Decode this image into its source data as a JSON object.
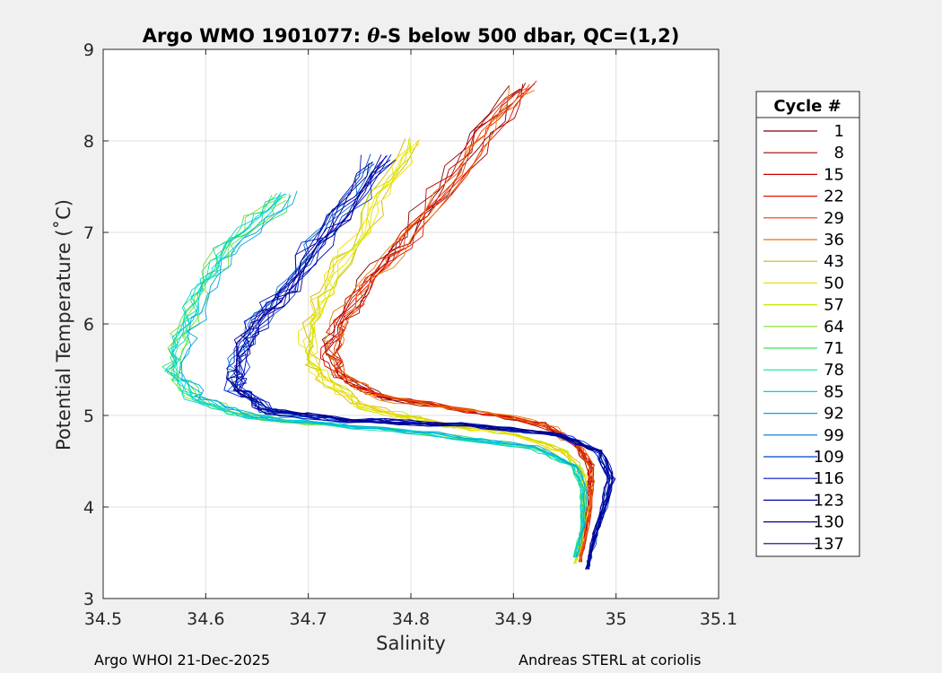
{
  "chart_data": {
    "type": "line",
    "title_prefix": "Argo WMO 1901077: ",
    "title_theta": "θ",
    "title_suffix": "-S below 500 dbar,  QC=(1,2)",
    "xlabel": "Salinity",
    "ylabel": "Potential Temperature (˚C)",
    "xlim": [
      34.5,
      35.1
    ],
    "ylim": [
      3,
      9
    ],
    "x_ticks": [
      34.5,
      34.6,
      34.7,
      34.8,
      34.9,
      35.0,
      35.1
    ],
    "x_tick_labels": [
      "34.5",
      "34.6",
      "34.7",
      "34.8",
      "34.9",
      "35",
      "35.1"
    ],
    "y_ticks": [
      3,
      4,
      5,
      6,
      7,
      8,
      9
    ],
    "y_tick_labels": [
      "3",
      "4",
      "5",
      "6",
      "7",
      "8",
      "9"
    ],
    "grid": true,
    "legend": {
      "title": "Cycle #",
      "position": "right",
      "entries": [
        {
          "label": "1",
          "color": "#800000"
        },
        {
          "label": "8",
          "color": "#a00000"
        },
        {
          "label": "15",
          "color": "#c80000"
        },
        {
          "label": "22",
          "color": "#e80e00"
        },
        {
          "label": "29",
          "color": "#e83c00"
        },
        {
          "label": "36",
          "color": "#e87800"
        },
        {
          "label": "43",
          "color": "#d8b400"
        },
        {
          "label": "50",
          "color": "#f0e000"
        },
        {
          "label": "57",
          "color": "#c8e600"
        },
        {
          "label": "64",
          "color": "#80e020"
        },
        {
          "label": "71",
          "color": "#40e060"
        },
        {
          "label": "78",
          "color": "#10e0a0"
        },
        {
          "label": "85",
          "color": "#00d0e0"
        },
        {
          "label": "92",
          "color": "#00a8e0"
        },
        {
          "label": "99",
          "color": "#0070d8"
        },
        {
          "label": "109",
          "color": "#0040d0"
        },
        {
          "label": "116",
          "color": "#0010c8"
        },
        {
          "label": "123",
          "color": "#0000b0"
        },
        {
          "label": "130",
          "color": "#000090"
        },
        {
          "label": "137",
          "color": "#000080"
        }
      ]
    },
    "series_groups": [
      {
        "name": "cycles 1-36 (red/orange)",
        "count": 12,
        "color_index_range": [
          0,
          5
        ],
        "profile": [
          [
            34.91,
            8.6
          ],
          [
            34.86,
            7.9
          ],
          [
            34.8,
            7.0
          ],
          [
            34.76,
            6.5
          ],
          [
            34.73,
            6.0
          ],
          [
            34.72,
            5.7
          ],
          [
            34.73,
            5.45
          ],
          [
            34.77,
            5.2
          ],
          [
            34.86,
            5.05
          ],
          [
            34.93,
            4.9
          ],
          [
            34.96,
            4.7
          ],
          [
            34.975,
            4.45
          ],
          [
            34.975,
            4.1
          ],
          [
            34.97,
            3.7
          ],
          [
            34.965,
            3.4
          ]
        ]
      },
      {
        "name": "cycles 43-57 (yellow)",
        "count": 8,
        "color_index_range": [
          6,
          8
        ],
        "profile": [
          [
            34.8,
            8.0
          ],
          [
            34.76,
            7.2
          ],
          [
            34.72,
            6.5
          ],
          [
            34.7,
            6.0
          ],
          [
            34.7,
            5.6
          ],
          [
            34.72,
            5.35
          ],
          [
            34.75,
            5.1
          ],
          [
            34.82,
            4.92
          ],
          [
            34.9,
            4.8
          ],
          [
            34.95,
            4.6
          ],
          [
            34.968,
            4.35
          ],
          [
            34.97,
            4.0
          ],
          [
            34.965,
            3.6
          ],
          [
            34.96,
            3.38
          ]
        ]
      },
      {
        "name": "cycles 64-92 (green/cyan)",
        "count": 12,
        "color_index_range": [
          9,
          13
        ],
        "profile": [
          [
            34.68,
            7.4
          ],
          [
            34.63,
            6.9
          ],
          [
            34.6,
            6.4
          ],
          [
            34.58,
            5.9
          ],
          [
            34.57,
            5.5
          ],
          [
            34.59,
            5.2
          ],
          [
            34.64,
            5.0
          ],
          [
            34.72,
            4.9
          ],
          [
            34.82,
            4.8
          ],
          [
            34.92,
            4.65
          ],
          [
            34.96,
            4.45
          ],
          [
            34.968,
            4.2
          ],
          [
            34.968,
            3.8
          ],
          [
            34.96,
            3.45
          ]
        ]
      },
      {
        "name": "cycles 99-137 (blue)",
        "count": 14,
        "color_index_range": [
          14,
          19
        ],
        "profile": [
          [
            34.77,
            7.8
          ],
          [
            34.72,
            7.0
          ],
          [
            34.68,
            6.4
          ],
          [
            34.65,
            6.0
          ],
          [
            34.63,
            5.6
          ],
          [
            34.63,
            5.3
          ],
          [
            34.66,
            5.05
          ],
          [
            34.74,
            4.95
          ],
          [
            34.85,
            4.9
          ],
          [
            34.94,
            4.8
          ],
          [
            34.985,
            4.6
          ],
          [
            34.995,
            4.3
          ],
          [
            34.985,
            3.9
          ],
          [
            34.975,
            3.5
          ],
          [
            34.972,
            3.32
          ]
        ]
      }
    ]
  },
  "footer": {
    "left": "Argo WHOI 21-Dec-2025",
    "right": "Andreas STERL at coriolis"
  }
}
